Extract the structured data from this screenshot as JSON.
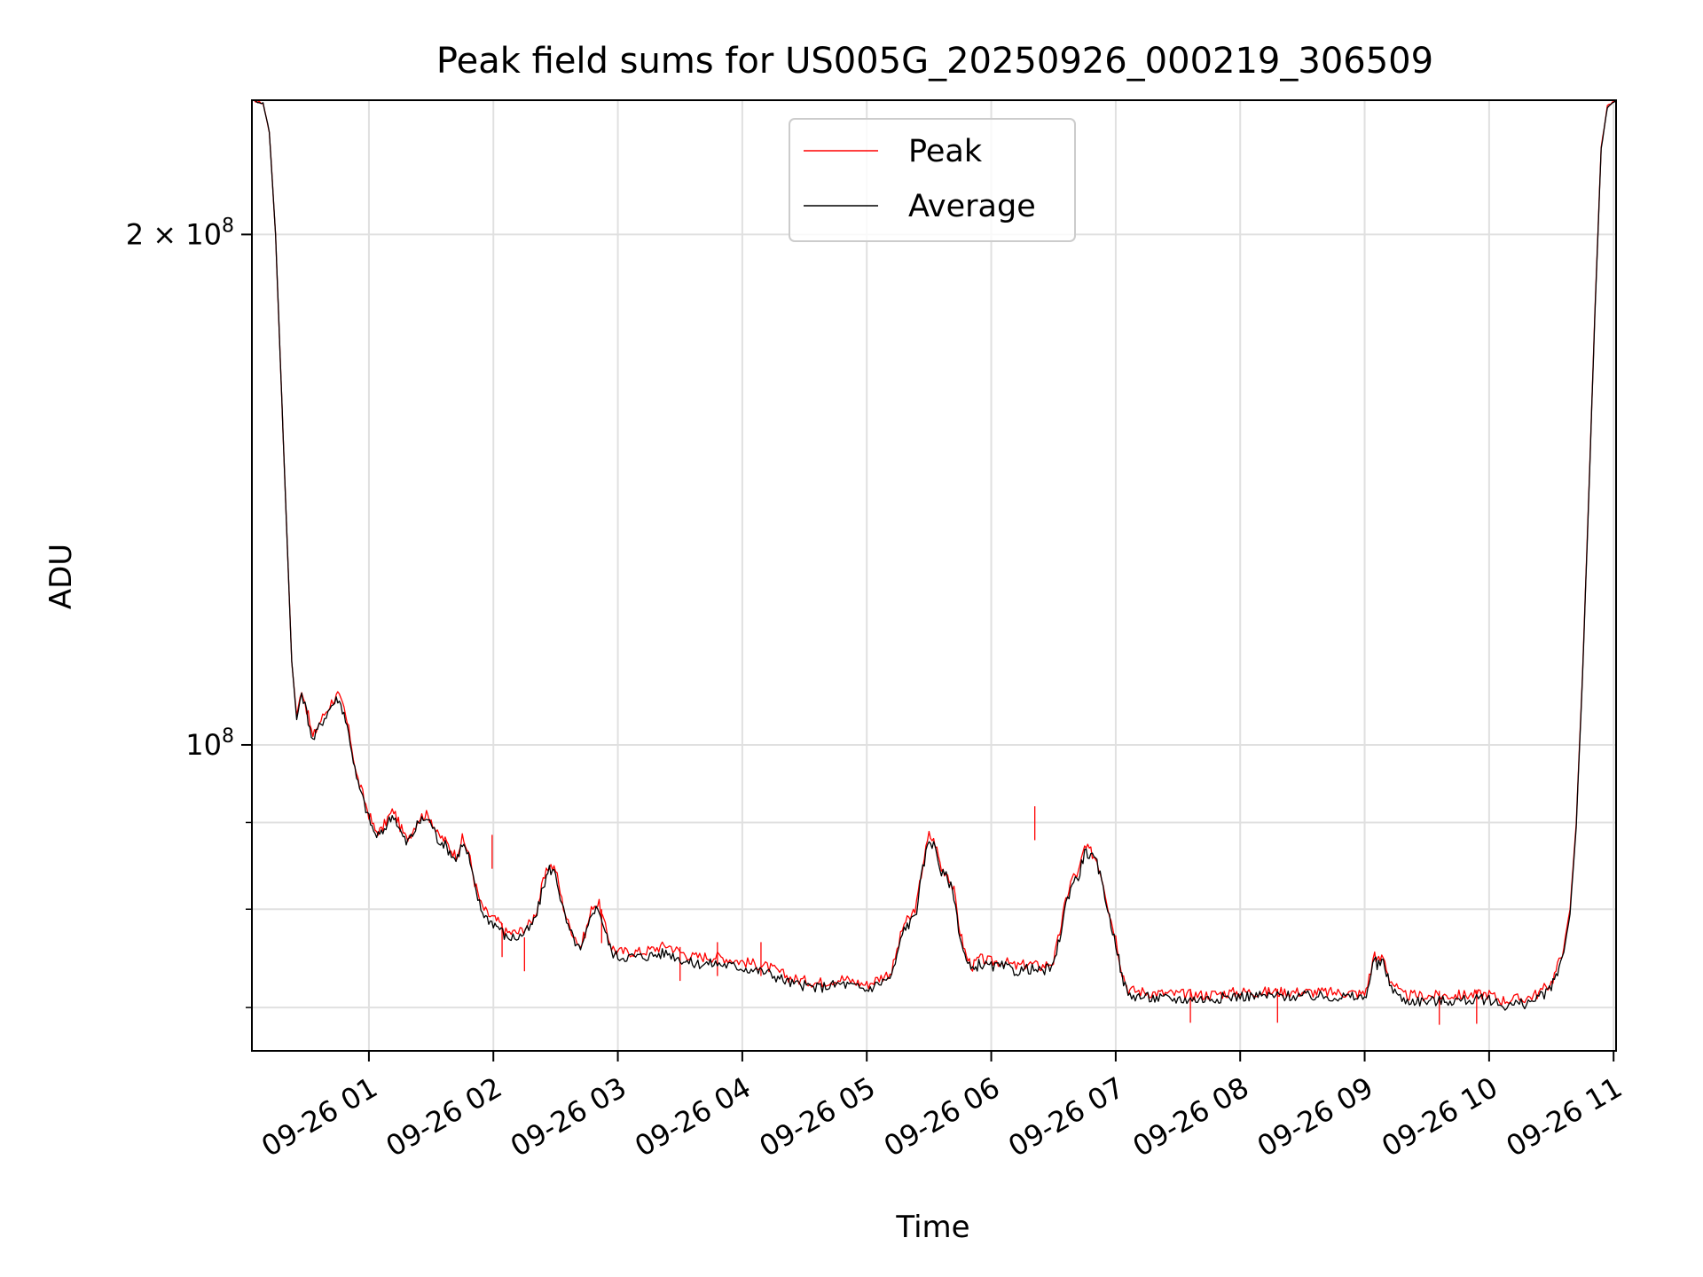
{
  "chart_data": {
    "type": "line",
    "title": "Peak field sums for US005G_20250926_000219_306509",
    "xlabel": "Time",
    "ylabel": "ADU",
    "yscale": "log",
    "grid": true,
    "legend_position": "top-center",
    "x_unit": "hours after 2025-09-26 00:00",
    "xlim": [
      0.06,
      11.02
    ],
    "ylim": [
      66000000,
      240000000
    ],
    "x_ticks": [
      {
        "value": 1,
        "label": "09-26 01"
      },
      {
        "value": 2,
        "label": "09-26 02"
      },
      {
        "value": 3,
        "label": "09-26 03"
      },
      {
        "value": 4,
        "label": "09-26 04"
      },
      {
        "value": 5,
        "label": "09-26 05"
      },
      {
        "value": 6,
        "label": "09-26 06"
      },
      {
        "value": 7,
        "label": "09-26 07"
      },
      {
        "value": 8,
        "label": "09-26 08"
      },
      {
        "value": 9,
        "label": "09-26 09"
      },
      {
        "value": 10,
        "label": "09-26 10"
      },
      {
        "value": 11,
        "label": "09-26 11"
      }
    ],
    "y_major_ticks": [
      {
        "value": 100000000,
        "base": "10",
        "exp": "8",
        "prefix": ""
      },
      {
        "value": 200000000,
        "base": "10",
        "exp": "8",
        "prefix": "2 × "
      }
    ],
    "y_minor_ticks": [
      70000000,
      80000000,
      90000000
    ],
    "series": [
      {
        "name": "Peak",
        "color": "#ff0000",
        "points": [
          [
            0.06,
            240000000
          ],
          [
            0.15,
            239000000
          ],
          [
            0.2,
            230000000
          ],
          [
            0.25,
            200000000
          ],
          [
            0.3,
            160000000
          ],
          [
            0.35,
            128000000
          ],
          [
            0.38,
            112000000
          ],
          [
            0.42,
            104000000
          ],
          [
            0.46,
            108000000
          ],
          [
            0.5,
            105000000
          ],
          [
            0.55,
            101000000
          ],
          [
            0.6,
            103000000
          ],
          [
            0.7,
            106000000
          ],
          [
            0.75,
            107000000
          ],
          [
            0.8,
            105000000
          ],
          [
            0.85,
            101000000
          ],
          [
            0.9,
            96000000
          ],
          [
            0.95,
            93500000
          ],
          [
            1.0,
            91000000
          ],
          [
            1.05,
            89000000
          ],
          [
            1.1,
            89000000
          ],
          [
            1.15,
            90500000
          ],
          [
            1.2,
            91500000
          ],
          [
            1.25,
            89500000
          ],
          [
            1.3,
            88000000
          ],
          [
            1.35,
            89000000
          ],
          [
            1.4,
            90500000
          ],
          [
            1.45,
            91000000
          ],
          [
            1.5,
            90500000
          ],
          [
            1.55,
            88500000
          ],
          [
            1.6,
            88000000
          ],
          [
            1.65,
            87000000
          ],
          [
            1.7,
            86000000
          ],
          [
            1.75,
            88000000
          ],
          [
            1.8,
            86500000
          ],
          [
            1.85,
            83000000
          ],
          [
            1.9,
            80500000
          ],
          [
            1.95,
            79500000
          ],
          [
            2.0,
            79000000
          ],
          [
            2.05,
            78500000
          ],
          [
            2.1,
            77500000
          ],
          [
            2.2,
            77500000
          ],
          [
            2.3,
            78500000
          ],
          [
            2.35,
            80000000
          ],
          [
            2.4,
            83000000
          ],
          [
            2.45,
            85000000
          ],
          [
            2.5,
            84500000
          ],
          [
            2.55,
            81000000
          ],
          [
            2.6,
            78500000
          ],
          [
            2.7,
            76000000
          ],
          [
            2.75,
            78000000
          ],
          [
            2.8,
            80500000
          ],
          [
            2.85,
            80500000
          ],
          [
            2.9,
            78000000
          ],
          [
            2.95,
            76000000
          ],
          [
            3.0,
            75500000
          ],
          [
            3.2,
            75500000
          ],
          [
            3.4,
            76200000
          ],
          [
            3.5,
            75500000
          ],
          [
            3.6,
            75000000
          ],
          [
            3.8,
            75000000
          ],
          [
            4.0,
            74500000
          ],
          [
            4.2,
            74000000
          ],
          [
            4.4,
            72800000
          ],
          [
            4.6,
            72400000
          ],
          [
            4.8,
            72800000
          ],
          [
            5.0,
            72200000
          ],
          [
            5.2,
            73500000
          ],
          [
            5.3,
            78500000
          ],
          [
            5.35,
            79000000
          ],
          [
            5.4,
            80500000
          ],
          [
            5.45,
            85000000
          ],
          [
            5.5,
            88500000
          ],
          [
            5.55,
            87500000
          ],
          [
            5.6,
            84500000
          ],
          [
            5.65,
            84000000
          ],
          [
            5.7,
            82000000
          ],
          [
            5.75,
            77500000
          ],
          [
            5.8,
            75000000
          ],
          [
            5.85,
            74000000
          ],
          [
            5.9,
            74800000
          ],
          [
            6.0,
            74500000
          ],
          [
            6.1,
            74500000
          ],
          [
            6.2,
            74000000
          ],
          [
            6.3,
            74300000
          ],
          [
            6.4,
            74000000
          ],
          [
            6.5,
            74500000
          ],
          [
            6.55,
            77500000
          ],
          [
            6.6,
            81000000
          ],
          [
            6.65,
            83500000
          ],
          [
            6.7,
            84000000
          ],
          [
            6.75,
            87000000
          ],
          [
            6.8,
            86500000
          ],
          [
            6.85,
            85500000
          ],
          [
            6.9,
            83000000
          ],
          [
            6.95,
            79500000
          ],
          [
            7.0,
            77000000
          ],
          [
            7.05,
            73500000
          ],
          [
            7.1,
            71700000
          ],
          [
            7.3,
            71400000
          ],
          [
            7.5,
            71300000
          ],
          [
            7.7,
            71200000
          ],
          [
            8.0,
            71500000
          ],
          [
            8.5,
            71500000
          ],
          [
            8.9,
            71400000
          ],
          [
            9.0,
            71300000
          ],
          [
            9.05,
            73500000
          ],
          [
            9.08,
            75500000
          ],
          [
            9.1,
            74500000
          ],
          [
            9.15,
            75000000
          ],
          [
            9.2,
            72800000
          ],
          [
            9.3,
            71200000
          ],
          [
            9.5,
            71100000
          ],
          [
            9.8,
            71200000
          ],
          [
            10.0,
            71300000
          ],
          [
            10.1,
            70700000
          ],
          [
            10.2,
            70800000
          ],
          [
            10.3,
            70900000
          ],
          [
            10.4,
            71400000
          ],
          [
            10.5,
            72400000
          ],
          [
            10.55,
            74000000
          ],
          [
            10.6,
            76000000
          ],
          [
            10.65,
            80000000
          ],
          [
            10.7,
            90000000
          ],
          [
            10.75,
            110000000
          ],
          [
            10.8,
            140000000
          ],
          [
            10.85,
            180000000
          ],
          [
            10.9,
            225000000
          ],
          [
            10.95,
            238000000
          ],
          [
            11.02,
            240000000
          ]
        ],
        "spikes": [
          [
            1.99,
            88500000
          ],
          [
            2.07,
            78500000
          ],
          [
            2.25,
            77000000
          ],
          [
            2.87,
            80000000
          ],
          [
            3.5,
            76000000
          ],
          [
            3.8,
            76500000
          ],
          [
            4.15,
            76500000
          ],
          [
            6.35,
            92000000
          ],
          [
            7.6,
            71800000
          ],
          [
            8.3,
            71800000
          ],
          [
            9.6,
            71600000
          ],
          [
            9.9,
            71700000
          ]
        ]
      },
      {
        "name": "Average",
        "color": "#000000",
        "points": [
          [
            0.06,
            240000000
          ],
          [
            0.15,
            239000000
          ],
          [
            0.2,
            230000000
          ],
          [
            0.25,
            200000000
          ],
          [
            0.3,
            160000000
          ],
          [
            0.35,
            128000000
          ],
          [
            0.38,
            112000000
          ],
          [
            0.42,
            103500000
          ],
          [
            0.46,
            107500000
          ],
          [
            0.5,
            104500000
          ],
          [
            0.55,
            100500000
          ],
          [
            0.6,
            102500000
          ],
          [
            0.7,
            105500000
          ],
          [
            0.75,
            106500000
          ],
          [
            0.8,
            104500000
          ],
          [
            0.85,
            100500000
          ],
          [
            0.9,
            95500000
          ],
          [
            0.95,
            93000000
          ],
          [
            1.0,
            90500000
          ],
          [
            1.05,
            88500000
          ],
          [
            1.1,
            88500000
          ],
          [
            1.15,
            90000000
          ],
          [
            1.2,
            91000000
          ],
          [
            1.25,
            89000000
          ],
          [
            1.3,
            87500000
          ],
          [
            1.35,
            88500000
          ],
          [
            1.4,
            90000000
          ],
          [
            1.45,
            90500000
          ],
          [
            1.5,
            90000000
          ],
          [
            1.55,
            88000000
          ],
          [
            1.6,
            87500000
          ],
          [
            1.65,
            86500000
          ],
          [
            1.7,
            85500000
          ],
          [
            1.75,
            87500000
          ],
          [
            1.8,
            86000000
          ],
          [
            1.85,
            82500000
          ],
          [
            1.9,
            80000000
          ],
          [
            1.95,
            79000000
          ],
          [
            2.0,
            78500000
          ],
          [
            2.05,
            78000000
          ],
          [
            2.1,
            77000000
          ],
          [
            2.2,
            77000000
          ],
          [
            2.3,
            78000000
          ],
          [
            2.35,
            79500000
          ],
          [
            2.4,
            82500000
          ],
          [
            2.45,
            84500000
          ],
          [
            2.5,
            84000000
          ],
          [
            2.55,
            80500000
          ],
          [
            2.6,
            78000000
          ],
          [
            2.7,
            75500000
          ],
          [
            2.75,
            77500000
          ],
          [
            2.8,
            80000000
          ],
          [
            2.85,
            80000000
          ],
          [
            2.9,
            77500000
          ],
          [
            2.95,
            75500000
          ],
          [
            3.0,
            75000000
          ],
          [
            3.2,
            75000000
          ],
          [
            3.4,
            75400000
          ],
          [
            3.5,
            74800000
          ],
          [
            3.6,
            74300000
          ],
          [
            3.8,
            74300000
          ],
          [
            4.0,
            73900000
          ],
          [
            4.2,
            73400000
          ],
          [
            4.4,
            72300000
          ],
          [
            4.6,
            71900000
          ],
          [
            4.8,
            72300000
          ],
          [
            5.0,
            71700000
          ],
          [
            5.2,
            73000000
          ],
          [
            5.3,
            78000000
          ],
          [
            5.35,
            78500000
          ],
          [
            5.4,
            80000000
          ],
          [
            5.45,
            84500000
          ],
          [
            5.5,
            88000000
          ],
          [
            5.55,
            87000000
          ],
          [
            5.6,
            84000000
          ],
          [
            5.65,
            83500000
          ],
          [
            5.7,
            81500000
          ],
          [
            5.75,
            77000000
          ],
          [
            5.8,
            74500000
          ],
          [
            5.85,
            73500000
          ],
          [
            5.9,
            74300000
          ],
          [
            6.0,
            74000000
          ],
          [
            6.1,
            74000000
          ],
          [
            6.2,
            73500000
          ],
          [
            6.3,
            73800000
          ],
          [
            6.4,
            73500000
          ],
          [
            6.5,
            74000000
          ],
          [
            6.55,
            77000000
          ],
          [
            6.6,
            80500000
          ],
          [
            6.65,
            83000000
          ],
          [
            6.7,
            83500000
          ],
          [
            6.75,
            86500000
          ],
          [
            6.8,
            86000000
          ],
          [
            6.85,
            85000000
          ],
          [
            6.9,
            82500000
          ],
          [
            6.95,
            79000000
          ],
          [
            7.0,
            76500000
          ],
          [
            7.05,
            73000000
          ],
          [
            7.1,
            71200000
          ],
          [
            7.3,
            70900000
          ],
          [
            7.5,
            70800000
          ],
          [
            7.7,
            70800000
          ],
          [
            8.0,
            71100000
          ],
          [
            8.5,
            71100000
          ],
          [
            8.9,
            71000000
          ],
          [
            9.0,
            70900000
          ],
          [
            9.05,
            73000000
          ],
          [
            9.08,
            75000000
          ],
          [
            9.1,
            74000000
          ],
          [
            9.15,
            74500000
          ],
          [
            9.2,
            72300000
          ],
          [
            9.3,
            70700000
          ],
          [
            9.5,
            70600000
          ],
          [
            9.8,
            70700000
          ],
          [
            10.0,
            70800000
          ],
          [
            10.1,
            70200000
          ],
          [
            10.2,
            70300000
          ],
          [
            10.3,
            70400000
          ],
          [
            10.4,
            70900000
          ],
          [
            10.5,
            71900000
          ],
          [
            10.55,
            73500000
          ],
          [
            10.6,
            75500000
          ],
          [
            10.65,
            79500000
          ],
          [
            10.7,
            89500000
          ],
          [
            10.75,
            109500000
          ],
          [
            10.8,
            139500000
          ],
          [
            10.85,
            179500000
          ],
          [
            10.9,
            224500000
          ],
          [
            10.95,
            237500000
          ],
          [
            11.02,
            240000000
          ]
        ]
      }
    ]
  }
}
